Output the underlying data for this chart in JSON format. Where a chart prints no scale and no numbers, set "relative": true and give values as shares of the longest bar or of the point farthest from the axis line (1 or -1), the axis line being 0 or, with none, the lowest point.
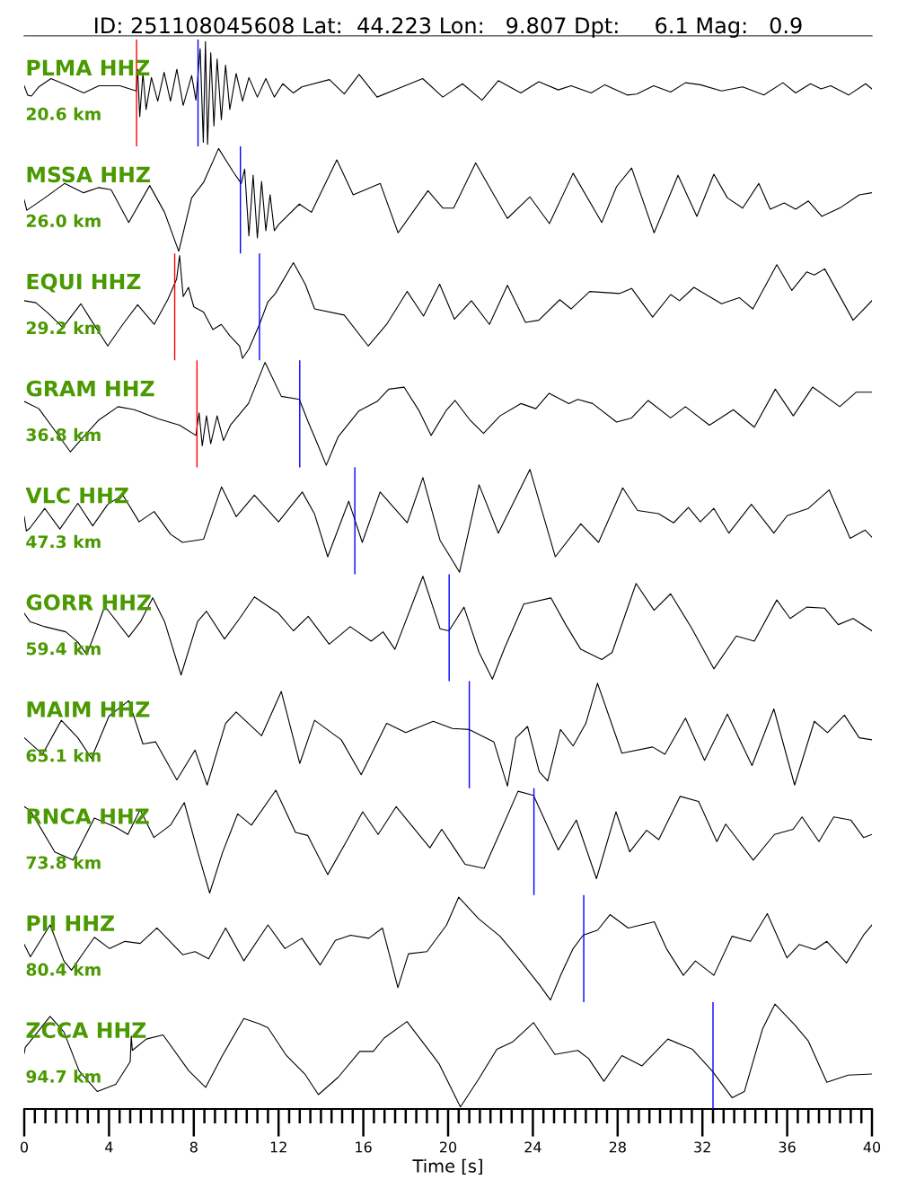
{
  "chart_data": [
    {
      "type": "line",
      "relative": true,
      "title": "ID: 251108045608 Lat:  44.223 Lon:   9.807 Dpt:     6.1 Mag:   0.9",
      "color": "#000000",
      "xlim": [
        0,
        40
      ],
      "tick_labels": false,
      "annotations": [
        "PLMA HHZ",
        "20.6 km"
      ],
      "ref_lines": [
        {
          "axis": "x",
          "value": 5.3,
          "color": "#ff0000"
        },
        {
          "axis": "x",
          "value": 8.2,
          "color": "#0000ff"
        }
      ],
      "x": [
        0,
        0.16,
        0.34,
        0.69,
        1.26,
        1.96,
        2.81,
        3.52,
        4.51,
        5.28,
        5.35,
        5.45,
        5.6,
        5.75,
        6.0,
        6.3,
        6.6,
        6.9,
        7.2,
        7.5,
        7.9,
        8.1,
        8.3,
        8.45,
        8.55,
        8.65,
        8.8,
        8.95,
        9.1,
        9.3,
        9.5,
        9.7,
        10.0,
        10.3,
        10.6,
        11.0,
        11.4,
        11.8,
        12.2,
        12.7,
        13.1,
        14.4,
        15.1,
        15.8,
        16.65,
        17.6,
        18.8,
        19.75,
        20.68,
        21.6,
        22.37,
        23.43,
        24.28,
        25.2,
        25.8,
        26.75,
        27.4,
        28.45,
        28.9,
        29.7,
        30.5,
        31.2,
        31.9,
        32.9,
        33.9,
        34.9,
        35.8,
        36.4,
        37.1,
        37.6,
        38.05,
        38.9,
        39.7,
        40.0
      ],
      "values": [
        0.57,
        0.48,
        0.47,
        0.56,
        0.64,
        0.58,
        0.5,
        0.57,
        0.57,
        0.52,
        0.73,
        0.27,
        0.69,
        0.34,
        0.65,
        0.42,
        0.7,
        0.42,
        0.73,
        0.38,
        0.67,
        0.43,
        0.93,
        0.02,
        1.0,
        0.0,
        0.89,
        0.18,
        0.83,
        0.24,
        0.77,
        0.34,
        0.69,
        0.42,
        0.65,
        0.46,
        0.64,
        0.46,
        0.59,
        0.5,
        0.56,
        0.63,
        0.49,
        0.68,
        0.46,
        0.54,
        0.64,
        0.46,
        0.59,
        0.43,
        0.62,
        0.5,
        0.61,
        0.53,
        0.57,
        0.5,
        0.58,
        0.48,
        0.49,
        0.57,
        0.51,
        0.6,
        0.58,
        0.52,
        0.56,
        0.48,
        0.6,
        0.5,
        0.59,
        0.54,
        0.57,
        0.48,
        0.59,
        0.54
      ]
    },
    {
      "type": "line",
      "relative": true,
      "color": "#000000",
      "xlim": [
        0,
        40
      ],
      "tick_labels": false,
      "annotations": [
        "MSSA HHZ",
        "26.0 km"
      ],
      "ref_lines": [
        {
          "axis": "x",
          "value": 10.2,
          "color": "#0000ff"
        }
      ],
      "x": [
        0,
        0.12,
        0.97,
        1.9,
        2.8,
        3.5,
        4.1,
        4.93,
        5.92,
        6.62,
        7.29,
        7.9,
        8.46,
        9.17,
        9.87,
        10.24,
        10.4,
        10.6,
        10.8,
        11.0,
        11.2,
        11.4,
        11.6,
        11.8,
        12.0,
        12.98,
        13.55,
        14.75,
        15.52,
        16.8,
        17.64,
        19.05,
        19.76,
        20.26,
        21.3,
        22.16,
        22.8,
        23.86,
        24.78,
        25.9,
        27.25,
        27.95,
        28.66,
        29.72,
        30.85,
        31.74,
        32.54,
        33.18,
        33.9,
        34.66,
        35.2,
        35.86,
        36.4,
        37.0,
        37.63,
        38.55,
        39.4,
        40.0
      ],
      "values": [
        0.5,
        0.4,
        0.52,
        0.66,
        0.57,
        0.62,
        0.6,
        0.28,
        0.64,
        0.38,
        0.0,
        0.52,
        0.67,
        1.0,
        0.77,
        0.66,
        0.8,
        0.15,
        0.74,
        0.13,
        0.68,
        0.2,
        0.55,
        0.2,
        0.26,
        0.46,
        0.38,
        0.89,
        0.55,
        0.66,
        0.18,
        0.59,
        0.42,
        0.42,
        0.86,
        0.55,
        0.32,
        0.53,
        0.27,
        0.76,
        0.28,
        0.63,
        0.81,
        0.18,
        0.74,
        0.34,
        0.75,
        0.52,
        0.42,
        0.66,
        0.41,
        0.47,
        0.41,
        0.49,
        0.34,
        0.43,
        0.55,
        0.57
      ]
    },
    {
      "type": "line",
      "relative": true,
      "color": "#000000",
      "xlim": [
        0,
        40
      ],
      "tick_labels": false,
      "annotations": [
        "EQUI HHZ",
        "29.2 km"
      ],
      "ref_lines": [
        {
          "axis": "x",
          "value": 7.1,
          "color": "#ff0000"
        },
        {
          "axis": "x",
          "value": 11.1,
          "color": "#0000ff"
        }
      ],
      "x": [
        0,
        0.55,
        1.12,
        1.82,
        2.67,
        3.1,
        3.94,
        4.65,
        5.35,
        6.13,
        6.77,
        7.19,
        7.33,
        7.5,
        7.75,
        8.0,
        8.46,
        8.9,
        9.3,
        9.7,
        10.16,
        10.3,
        10.6,
        11.1,
        11.5,
        11.85,
        12.7,
        13.26,
        13.7,
        15.1,
        16.23,
        17.1,
        18.07,
        18.84,
        19.6,
        20.3,
        21.1,
        21.95,
        22.8,
        23.65,
        24.28,
        25.27,
        25.8,
        26.68,
        28.1,
        28.66,
        29.65,
        30.5,
        30.92,
        31.6,
        32.9,
        33.74,
        34.38,
        35.51,
        36.22,
        36.92,
        37.28,
        37.77,
        39.11,
        40.0
      ],
      "values": [
        0.56,
        0.54,
        0.44,
        0.3,
        0.53,
        0.39,
        0.12,
        0.33,
        0.52,
        0.33,
        0.57,
        0.77,
        1.0,
        0.6,
        0.69,
        0.5,
        0.45,
        0.28,
        0.33,
        0.22,
        0.12,
        0.0,
        0.09,
        0.33,
        0.55,
        0.63,
        0.93,
        0.72,
        0.48,
        0.42,
        0.12,
        0.33,
        0.65,
        0.41,
        0.72,
        0.38,
        0.56,
        0.33,
        0.71,
        0.35,
        0.37,
        0.57,
        0.48,
        0.65,
        0.63,
        0.68,
        0.4,
        0.62,
        0.56,
        0.69,
        0.53,
        0.59,
        0.48,
        0.91,
        0.66,
        0.84,
        0.81,
        0.87,
        0.37,
        0.56
      ]
    },
    {
      "type": "line",
      "relative": true,
      "color": "#000000",
      "xlim": [
        0,
        40
      ],
      "tick_labels": false,
      "annotations": [
        "GRAM HHZ",
        "36.8 km"
      ],
      "ref_lines": [
        {
          "axis": "x",
          "value": 8.15,
          "color": "#ff0000"
        },
        {
          "axis": "x",
          "value": 13.0,
          "color": "#0000ff"
        }
      ],
      "x": [
        0,
        0.69,
        1.4,
        2.18,
        2.81,
        3.52,
        4.43,
        5.2,
        6.34,
        7.33,
        8.1,
        8.25,
        8.4,
        8.6,
        8.8,
        9.1,
        9.4,
        9.73,
        10.58,
        11.36,
        12.13,
        12.98,
        13.4,
        13.83,
        14.25,
        14.82,
        15.8,
        16.65,
        17.2,
        17.92,
        18.63,
        19.2,
        19.9,
        20.33,
        21.03,
        21.67,
        22.45,
        23.43,
        24.14,
        24.77,
        25.7,
        26.12,
        26.82,
        27.95,
        28.66,
        29.44,
        30.5,
        31.2,
        32.33,
        33.46,
        34.45,
        35.44,
        36.29,
        37.2,
        38.48,
        39.25,
        40.0
      ],
      "values": [
        0.62,
        0.55,
        0.35,
        0.13,
        0.28,
        0.44,
        0.57,
        0.54,
        0.45,
        0.39,
        0.29,
        0.51,
        0.19,
        0.48,
        0.21,
        0.48,
        0.24,
        0.39,
        0.6,
        1.0,
        0.67,
        0.64,
        0.42,
        0.21,
        0.0,
        0.28,
        0.53,
        0.62,
        0.74,
        0.76,
        0.53,
        0.29,
        0.53,
        0.63,
        0.44,
        0.31,
        0.48,
        0.6,
        0.55,
        0.7,
        0.6,
        0.64,
        0.6,
        0.42,
        0.46,
        0.63,
        0.46,
        0.57,
        0.39,
        0.54,
        0.37,
        0.74,
        0.48,
        0.76,
        0.57,
        0.71,
        0.71
      ]
    },
    {
      "type": "line",
      "relative": true,
      "color": "#000000",
      "xlim": [
        0,
        40
      ],
      "tick_labels": false,
      "annotations": [
        "VLC HHZ",
        "47.3 km"
      ],
      "ref_lines": [
        {
          "axis": "x",
          "value": 15.6,
          "color": "#0000ff"
        }
      ],
      "x": [
        0,
        0.1,
        0.27,
        0.97,
        1.68,
        2.53,
        3.23,
        3.94,
        4.65,
        5.42,
        6.13,
        6.9,
        7.47,
        8.46,
        9.31,
        10.0,
        10.86,
        12.0,
        13.12,
        13.69,
        14.32,
        15.31,
        15.95,
        16.79,
        18.07,
        18.81,
        19.62,
        20.04,
        20.54,
        21.46,
        22.37,
        23.86,
        25.06,
        26.26,
        27.1,
        28.24,
        28.94,
        29.93,
        30.64,
        31.34,
        31.9,
        32.54,
        33.25,
        34.31,
        35.37,
        36.0,
        37.0,
        37.98,
        38.97,
        39.68,
        40.0
      ],
      "values": [
        0.54,
        0.4,
        0.43,
        0.62,
        0.42,
        0.67,
        0.45,
        0.66,
        0.75,
        0.49,
        0.59,
        0.37,
        0.29,
        0.32,
        0.83,
        0.54,
        0.75,
        0.49,
        0.78,
        0.57,
        0.15,
        0.69,
        0.29,
        0.78,
        0.48,
        0.92,
        0.31,
        0.17,
        0.0,
        0.85,
        0.38,
        1.0,
        0.15,
        0.47,
        0.29,
        0.82,
        0.6,
        0.57,
        0.48,
        0.63,
        0.49,
        0.62,
        0.38,
        0.66,
        0.38,
        0.55,
        0.62,
        0.8,
        0.33,
        0.41,
        0.34
      ]
    },
    {
      "type": "line",
      "relative": true,
      "color": "#000000",
      "xlim": [
        0,
        40
      ],
      "tick_labels": false,
      "annotations": [
        "GORR HHZ",
        "59.4 km"
      ],
      "ref_lines": [
        {
          "axis": "x",
          "value": 20.05,
          "color": "#0000ff"
        }
      ],
      "x": [
        0,
        0.27,
        0.97,
        1.96,
        2.53,
        2.95,
        3.38,
        3.8,
        4.93,
        5.49,
        6.06,
        6.62,
        7.4,
        8.18,
        8.6,
        9.45,
        10.16,
        10.86,
        12.0,
        12.7,
        13.4,
        14.39,
        15.38,
        16.37,
        16.93,
        17.49,
        18.81,
        19.62,
        20.04,
        20.75,
        21.46,
        22.09,
        22.66,
        23.57,
        24.85,
        25.55,
        26.26,
        27.25,
        27.74,
        28.87,
        29.72,
        30.5,
        31.48,
        32.54,
        33.6,
        34.45,
        35.51,
        36.14,
        36.92,
        37.77,
        38.41,
        39.11,
        40.0
      ],
      "values": [
        0.64,
        0.56,
        0.51,
        0.46,
        0.36,
        0.24,
        0.47,
        0.71,
        0.41,
        0.56,
        0.79,
        0.56,
        0.04,
        0.56,
        0.66,
        0.39,
        0.59,
        0.8,
        0.64,
        0.47,
        0.61,
        0.34,
        0.51,
        0.37,
        0.46,
        0.29,
        1.0,
        0.49,
        0.47,
        0.7,
        0.26,
        0.0,
        0.3,
        0.73,
        0.79,
        0.53,
        0.29,
        0.19,
        0.26,
        0.93,
        0.67,
        0.83,
        0.5,
        0.1,
        0.42,
        0.37,
        0.77,
        0.59,
        0.7,
        0.69,
        0.53,
        0.59,
        0.47
      ]
    },
    {
      "type": "line",
      "relative": true,
      "color": "#000000",
      "xlim": [
        0,
        40
      ],
      "tick_labels": false,
      "annotations": [
        "MAIM HHZ",
        "65.1 km"
      ],
      "ref_lines": [
        {
          "axis": "x",
          "value": 21.0,
          "color": "#0000ff"
        }
      ],
      "x": [
        0,
        0.86,
        1.75,
        2.53,
        3.17,
        4.0,
        4.93,
        5.6,
        6.2,
        7.2,
        8.06,
        8.63,
        9.5,
        10.0,
        11.2,
        12.13,
        13.0,
        13.7,
        14.96,
        15.9,
        17.1,
        18.0,
        19.3,
        20.2,
        21.0,
        22.16,
        22.8,
        23.2,
        23.75,
        24.3,
        24.7,
        25.3,
        25.9,
        26.5,
        27.05,
        28.2,
        29.65,
        30.23,
        31.2,
        32.1,
        33.18,
        34.34,
        35.37,
        36.35,
        37.28,
        37.9,
        38.7,
        39.4,
        40.0
      ],
      "values": [
        0.47,
        0.31,
        0.64,
        0.47,
        0.27,
        0.68,
        0.83,
        0.41,
        0.43,
        0.06,
        0.35,
        0.01,
        0.61,
        0.72,
        0.49,
        0.92,
        0.22,
        0.64,
        0.45,
        0.11,
        0.61,
        0.52,
        0.63,
        0.56,
        0.55,
        0.43,
        0.0,
        0.47,
        0.58,
        0.14,
        0.05,
        0.55,
        0.39,
        0.61,
        1.0,
        0.32,
        0.38,
        0.31,
        0.66,
        0.25,
        0.7,
        0.2,
        0.75,
        0.01,
        0.63,
        0.52,
        0.69,
        0.47,
        0.45
      ]
    },
    {
      "type": "line",
      "relative": true,
      "color": "#000000",
      "xlim": [
        0,
        40
      ],
      "tick_labels": false,
      "annotations": [
        "RNCA HHZ",
        "73.8 km"
      ],
      "ref_lines": [
        {
          "axis": "x",
          "value": 24.05,
          "color": "#0000ff"
        }
      ],
      "x": [
        0,
        0.29,
        1.44,
        2.3,
        3.31,
        4.32,
        4.89,
        5.47,
        6.12,
        6.9,
        7.55,
        8.2,
        8.75,
        9.35,
        10.07,
        10.72,
        11.87,
        12.8,
        13.38,
        14.32,
        15.25,
        15.97,
        16.7,
        17.55,
        19.14,
        19.7,
        20.8,
        21.7,
        22.45,
        23.3,
        24.03,
        25.2,
        26.05,
        27.0,
        27.92,
        28.57,
        29.37,
        29.94,
        30.95,
        31.82,
        32.68,
        33.1,
        34.4,
        35.4,
        36.28,
        36.7,
        37.5,
        38.2,
        39.0,
        39.6,
        40.0
      ],
      "values": [
        0.84,
        0.8,
        0.4,
        0.32,
        0.73,
        0.64,
        0.57,
        0.81,
        0.54,
        0.66,
        0.88,
        0.39,
        0.0,
        0.39,
        0.77,
        0.66,
        1.0,
        0.59,
        0.56,
        0.18,
        0.52,
        0.79,
        0.57,
        0.84,
        0.44,
        0.62,
        0.28,
        0.24,
        0.59,
        0.99,
        0.95,
        0.42,
        0.71,
        0.14,
        0.79,
        0.4,
        0.61,
        0.52,
        0.94,
        0.89,
        0.5,
        0.67,
        0.32,
        0.57,
        0.62,
        0.74,
        0.5,
        0.74,
        0.71,
        0.54,
        0.57
      ]
    },
    {
      "type": "line",
      "relative": true,
      "color": "#000000",
      "xlim": [
        0,
        40
      ],
      "tick_labels": false,
      "annotations": [
        "PII HHZ",
        "80.4 km"
      ],
      "ref_lines": [
        {
          "axis": "x",
          "value": 26.4,
          "color": "#0000ff"
        }
      ],
      "x": [
        0,
        0.29,
        1.22,
        1.87,
        2.23,
        2.73,
        3.31,
        4.03,
        4.75,
        5.47,
        6.26,
        7.48,
        8.06,
        8.7,
        9.5,
        10.36,
        11.5,
        12.3,
        13.1,
        13.96,
        14.68,
        15.4,
        16.26,
        16.9,
        17.27,
        17.63,
        18.13,
        19.0,
        19.93,
        20.5,
        21.44,
        22.45,
        23.3,
        24.3,
        24.83,
        25.33,
        25.9,
        26.37,
        27.06,
        27.64,
        28.5,
        29.73,
        30.3,
        31.1,
        31.67,
        32.54,
        33.4,
        34.27,
        35.06,
        35.99,
        36.57,
        37.3,
        37.87,
        38.8,
        39.6,
        40.0
      ],
      "values": [
        0.54,
        0.42,
        0.73,
        0.38,
        0.29,
        0.44,
        0.61,
        0.5,
        0.57,
        0.55,
        0.7,
        0.44,
        0.47,
        0.4,
        0.7,
        0.38,
        0.73,
        0.5,
        0.6,
        0.34,
        0.58,
        0.63,
        0.6,
        0.7,
        0.41,
        0.12,
        0.45,
        0.47,
        0.73,
        1.0,
        0.79,
        0.62,
        0.41,
        0.15,
        0.0,
        0.25,
        0.5,
        0.63,
        0.68,
        0.83,
        0.7,
        0.76,
        0.5,
        0.24,
        0.38,
        0.24,
        0.62,
        0.57,
        0.84,
        0.41,
        0.54,
        0.49,
        0.57,
        0.36,
        0.63,
        0.73
      ]
    },
    {
      "type": "line",
      "relative": true,
      "color": "#000000",
      "xlim": [
        0,
        40
      ],
      "tick_labels": "x",
      "xlabel": "Time [s]",
      "annotations": [
        "ZCCA HHZ",
        "94.7 km"
      ],
      "ref_lines": [
        {
          "axis": "x",
          "value": 32.5,
          "color": "#0000ff"
        }
      ],
      "xticks": [
        0,
        {
          "value": 0.5,
          "label": null
        },
        {
          "value": 1,
          "label": null
        },
        {
          "value": 1.5,
          "label": null
        },
        {
          "value": 2,
          "label": null
        },
        {
          "value": 2.5,
          "label": null
        },
        {
          "value": 3,
          "label": null
        },
        {
          "value": 3.5,
          "label": null
        },
        4,
        {
          "value": 4.5,
          "label": null
        },
        {
          "value": 5,
          "label": null
        },
        {
          "value": 5.5,
          "label": null
        },
        {
          "value": 6,
          "label": null
        },
        {
          "value": 6.5,
          "label": null
        },
        {
          "value": 7,
          "label": null
        },
        {
          "value": 7.5,
          "label": null
        },
        8,
        {
          "value": 8.5,
          "label": null
        },
        {
          "value": 9,
          "label": null
        },
        {
          "value": 9.5,
          "label": null
        },
        {
          "value": 10,
          "label": null
        },
        {
          "value": 10.5,
          "label": null
        },
        {
          "value": 11,
          "label": null
        },
        {
          "value": 11.5,
          "label": null
        },
        12,
        {
          "value": 12.5,
          "label": null
        },
        {
          "value": 13,
          "label": null
        },
        {
          "value": 13.5,
          "label": null
        },
        {
          "value": 14,
          "label": null
        },
        {
          "value": 14.5,
          "label": null
        },
        {
          "value": 15,
          "label": null
        },
        {
          "value": 15.5,
          "label": null
        },
        16,
        {
          "value": 16.5,
          "label": null
        },
        {
          "value": 17,
          "label": null
        },
        {
          "value": 17.5,
          "label": null
        },
        {
          "value": 18,
          "label": null
        },
        {
          "value": 18.5,
          "label": null
        },
        {
          "value": 19,
          "label": null
        },
        {
          "value": 19.5,
          "label": null
        },
        20,
        {
          "value": 20.5,
          "label": null
        },
        {
          "value": 21,
          "label": null
        },
        {
          "value": 21.5,
          "label": null
        },
        {
          "value": 22,
          "label": null
        },
        {
          "value": 22.5,
          "label": null
        },
        {
          "value": 23,
          "label": null
        },
        {
          "value": 23.5,
          "label": null
        },
        24,
        {
          "value": 24.5,
          "label": null
        },
        {
          "value": 25,
          "label": null
        },
        {
          "value": 25.5,
          "label": null
        },
        {
          "value": 26,
          "label": null
        },
        {
          "value": 26.5,
          "label": null
        },
        {
          "value": 27,
          "label": null
        },
        {
          "value": 27.5,
          "label": null
        },
        28,
        {
          "value": 28.5,
          "label": null
        },
        {
          "value": 29,
          "label": null
        },
        {
          "value": 29.5,
          "label": null
        },
        {
          "value": 30,
          "label": null
        },
        {
          "value": 30.5,
          "label": null
        },
        {
          "value": 31,
          "label": null
        },
        {
          "value": 31.5,
          "label": null
        },
        32,
        {
          "value": 32.5,
          "label": null
        },
        {
          "value": 33,
          "label": null
        },
        {
          "value": 33.5,
          "label": null
        },
        {
          "value": 34,
          "label": null
        },
        {
          "value": 34.5,
          "label": null
        },
        {
          "value": 35,
          "label": null
        },
        {
          "value": 35.5,
          "label": null
        },
        36,
        {
          "value": 36.5,
          "label": null
        },
        {
          "value": 37,
          "label": null
        },
        {
          "value": 37.5,
          "label": null
        },
        {
          "value": 38,
          "label": null
        },
        {
          "value": 38.5,
          "label": null
        },
        {
          "value": 39,
          "label": null
        },
        {
          "value": 39.5,
          "label": null
        },
        40
      ],
      "x": [
        0,
        0.05,
        0.29,
        1.22,
        1.87,
        2.59,
        3.45,
        4.32,
        5.0,
        5.05,
        5.1,
        5.76,
        6.55,
        7.77,
        8.56,
        9.35,
        10.36,
        11.08,
        11.5,
        12.37,
        13.24,
        13.88,
        14.82,
        15.83,
        16.47,
        16.98,
        18.06,
        19.28,
        19.57,
        20.58,
        21.44,
        22.3,
        23.03,
        24.03,
        25.04,
        26.12,
        26.63,
        27.35,
        28.2,
        29.15,
        30.37,
        31.53,
        32.46,
        33.4,
        33.98,
        34.84,
        35.42,
        36.35,
        37.0,
        37.87,
        38.88,
        40.0
      ],
      "values": [
        0.52,
        0.58,
        0.64,
        0.88,
        0.73,
        0.35,
        0.15,
        0.22,
        0.44,
        0.69,
        0.55,
        0.66,
        0.7,
        0.35,
        0.19,
        0.5,
        0.86,
        0.81,
        0.77,
        0.5,
        0.32,
        0.12,
        0.29,
        0.54,
        0.54,
        0.67,
        0.83,
        0.5,
        0.42,
        0.0,
        0.27,
        0.56,
        0.63,
        0.82,
        0.51,
        0.55,
        0.47,
        0.25,
        0.5,
        0.4,
        0.66,
        0.56,
        0.35,
        0.09,
        0.15,
        0.76,
        1.0,
        0.8,
        0.64,
        0.24,
        0.31,
        0.32
      ]
    }
  ]
}
